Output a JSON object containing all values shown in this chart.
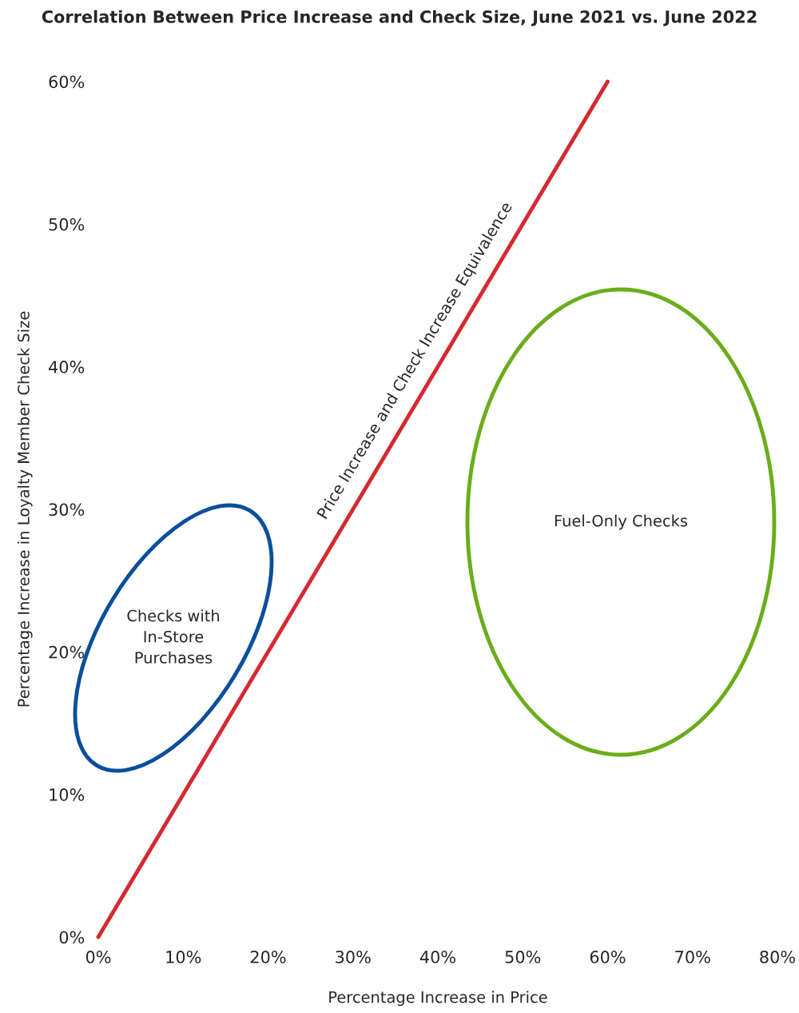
{
  "chart_data": {
    "type": "line",
    "title": "Correlation Between Price Increase and Check Size, June 2021 vs. June 2022",
    "xlabel": "Percentage Increase in Price",
    "ylabel": "Percentage Increase in Loyalty Member Check Size",
    "xlim": [
      0,
      80
    ],
    "ylim": [
      0,
      60
    ],
    "xticks": [
      {
        "value": 0,
        "label": "0%"
      },
      {
        "value": 10,
        "label": "10%"
      },
      {
        "value": 20,
        "label": "20%"
      },
      {
        "value": 30,
        "label": "30%"
      },
      {
        "value": 40,
        "label": "40%"
      },
      {
        "value": 50,
        "label": "50%"
      },
      {
        "value": 60,
        "label": "60%"
      },
      {
        "value": 70,
        "label": "70%"
      },
      {
        "value": 80,
        "label": "80%"
      }
    ],
    "yticks": [
      {
        "value": 0,
        "label": "0%"
      },
      {
        "value": 10,
        "label": "10%"
      },
      {
        "value": 20,
        "label": "20%"
      },
      {
        "value": 30,
        "label": "30%"
      },
      {
        "value": 40,
        "label": "40%"
      },
      {
        "value": 50,
        "label": "50%"
      },
      {
        "value": 60,
        "label": "60%"
      }
    ],
    "grid": false,
    "legend": false,
    "marker": "none",
    "line_style": "solid",
    "series": [
      {
        "color": "#d42a30",
        "x": [
          0,
          60
        ],
        "values": [
          0,
          60
        ]
      }
    ],
    "annotations": [
      "Price Increase and Check Increase Equivalence",
      "Checks with\nIn-Store\nPurchases",
      "Fuel-Only Checks"
    ]
  }
}
